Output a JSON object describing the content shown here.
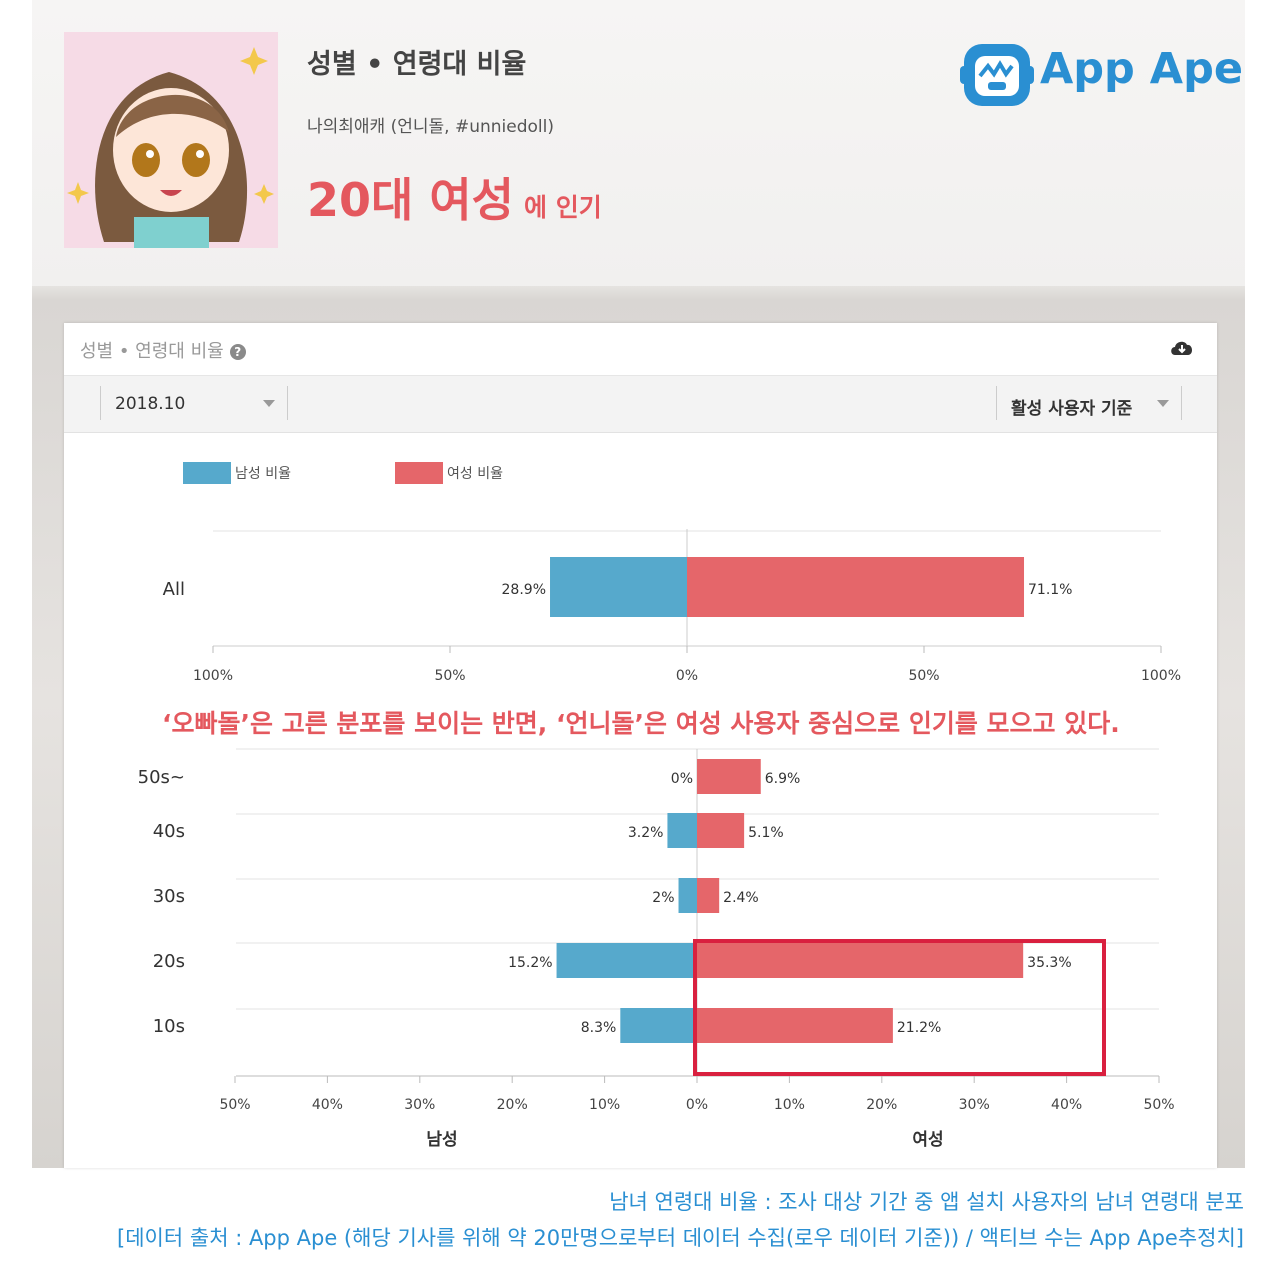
{
  "header": {
    "title": "성별 • 연령대 비율",
    "subtitle": "나의최애캐 (언니돌, #unniedoll)",
    "headline_big": "20대 여성",
    "headline_small": "에 인기",
    "logo_text": "App Ape"
  },
  "card": {
    "title": "성별 • 연령대 비율",
    "help_icon": "?",
    "date_value": "2018.10",
    "basis_value": "활성 사용자 기준"
  },
  "annotation": "‘오빠돌’은 고른 분포를 보이는 반면, ‘언니돌’은 여성 사용자 중심으로 인기를 모으고 있다.",
  "captions": {
    "line1": "남녀 연령대 비율 : 조사 대상 기간 중 앱 설치 사용자의 남녀 연령대 분포",
    "line2": "[데이터 출처 : App Ape (해당 기사를 위해 약 20만명으로부터 데이터 수집(로우 데이터 기준)) / 액티브 수는 App Ape추정치]"
  },
  "colors": {
    "male": "#56a9cc",
    "female": "#e5666a",
    "accent": "#e4585e",
    "highlight": "#d9203f",
    "brand": "#2a8fd2"
  },
  "chart_data": [
    {
      "type": "bar",
      "orientation": "horizontal-diverging",
      "categories": [
        "All"
      ],
      "series": [
        {
          "name": "남성 비율",
          "values": [
            28.9
          ],
          "labels": [
            "28.9%"
          ],
          "color": "#56a9cc"
        },
        {
          "name": "여성 비율",
          "values": [
            71.1
          ],
          "labels": [
            "71.1%"
          ],
          "color": "#e5666a"
        }
      ],
      "xlim": [
        -100,
        100
      ],
      "tick_values": [
        -100,
        -50,
        0,
        50,
        100
      ],
      "tick_labels": [
        "100%",
        "50%",
        "0%",
        "50%",
        "100%"
      ],
      "legend": "top-left",
      "grid": true
    },
    {
      "type": "bar",
      "orientation": "horizontal-diverging",
      "categories": [
        "50s~",
        "40s",
        "30s",
        "20s",
        "10s"
      ],
      "series": [
        {
          "name": "남성 비율",
          "values": [
            0,
            3.2,
            2,
            15.2,
            8.3
          ],
          "labels": [
            "0%",
            "3.2%",
            "2%",
            "15.2%",
            "8.3%"
          ],
          "color": "#56a9cc"
        },
        {
          "name": "여성 비율",
          "values": [
            6.9,
            5.1,
            2.4,
            35.3,
            21.2
          ],
          "labels": [
            "6.9%",
            "5.1%",
            "2.4%",
            "35.3%",
            "21.2%"
          ],
          "color": "#e5666a"
        }
      ],
      "xlim": [
        -50,
        50
      ],
      "tick_values": [
        -50,
        -40,
        -30,
        -20,
        -10,
        0,
        10,
        20,
        30,
        40,
        50
      ],
      "tick_labels": [
        "50%",
        "40%",
        "30%",
        "20%",
        "10%",
        "0%",
        "10%",
        "20%",
        "30%",
        "40%",
        "50%"
      ],
      "xlabel_left": "남성",
      "xlabel_right": "여성",
      "highlight_categories": [
        "20s",
        "10s"
      ],
      "grid": true
    }
  ]
}
